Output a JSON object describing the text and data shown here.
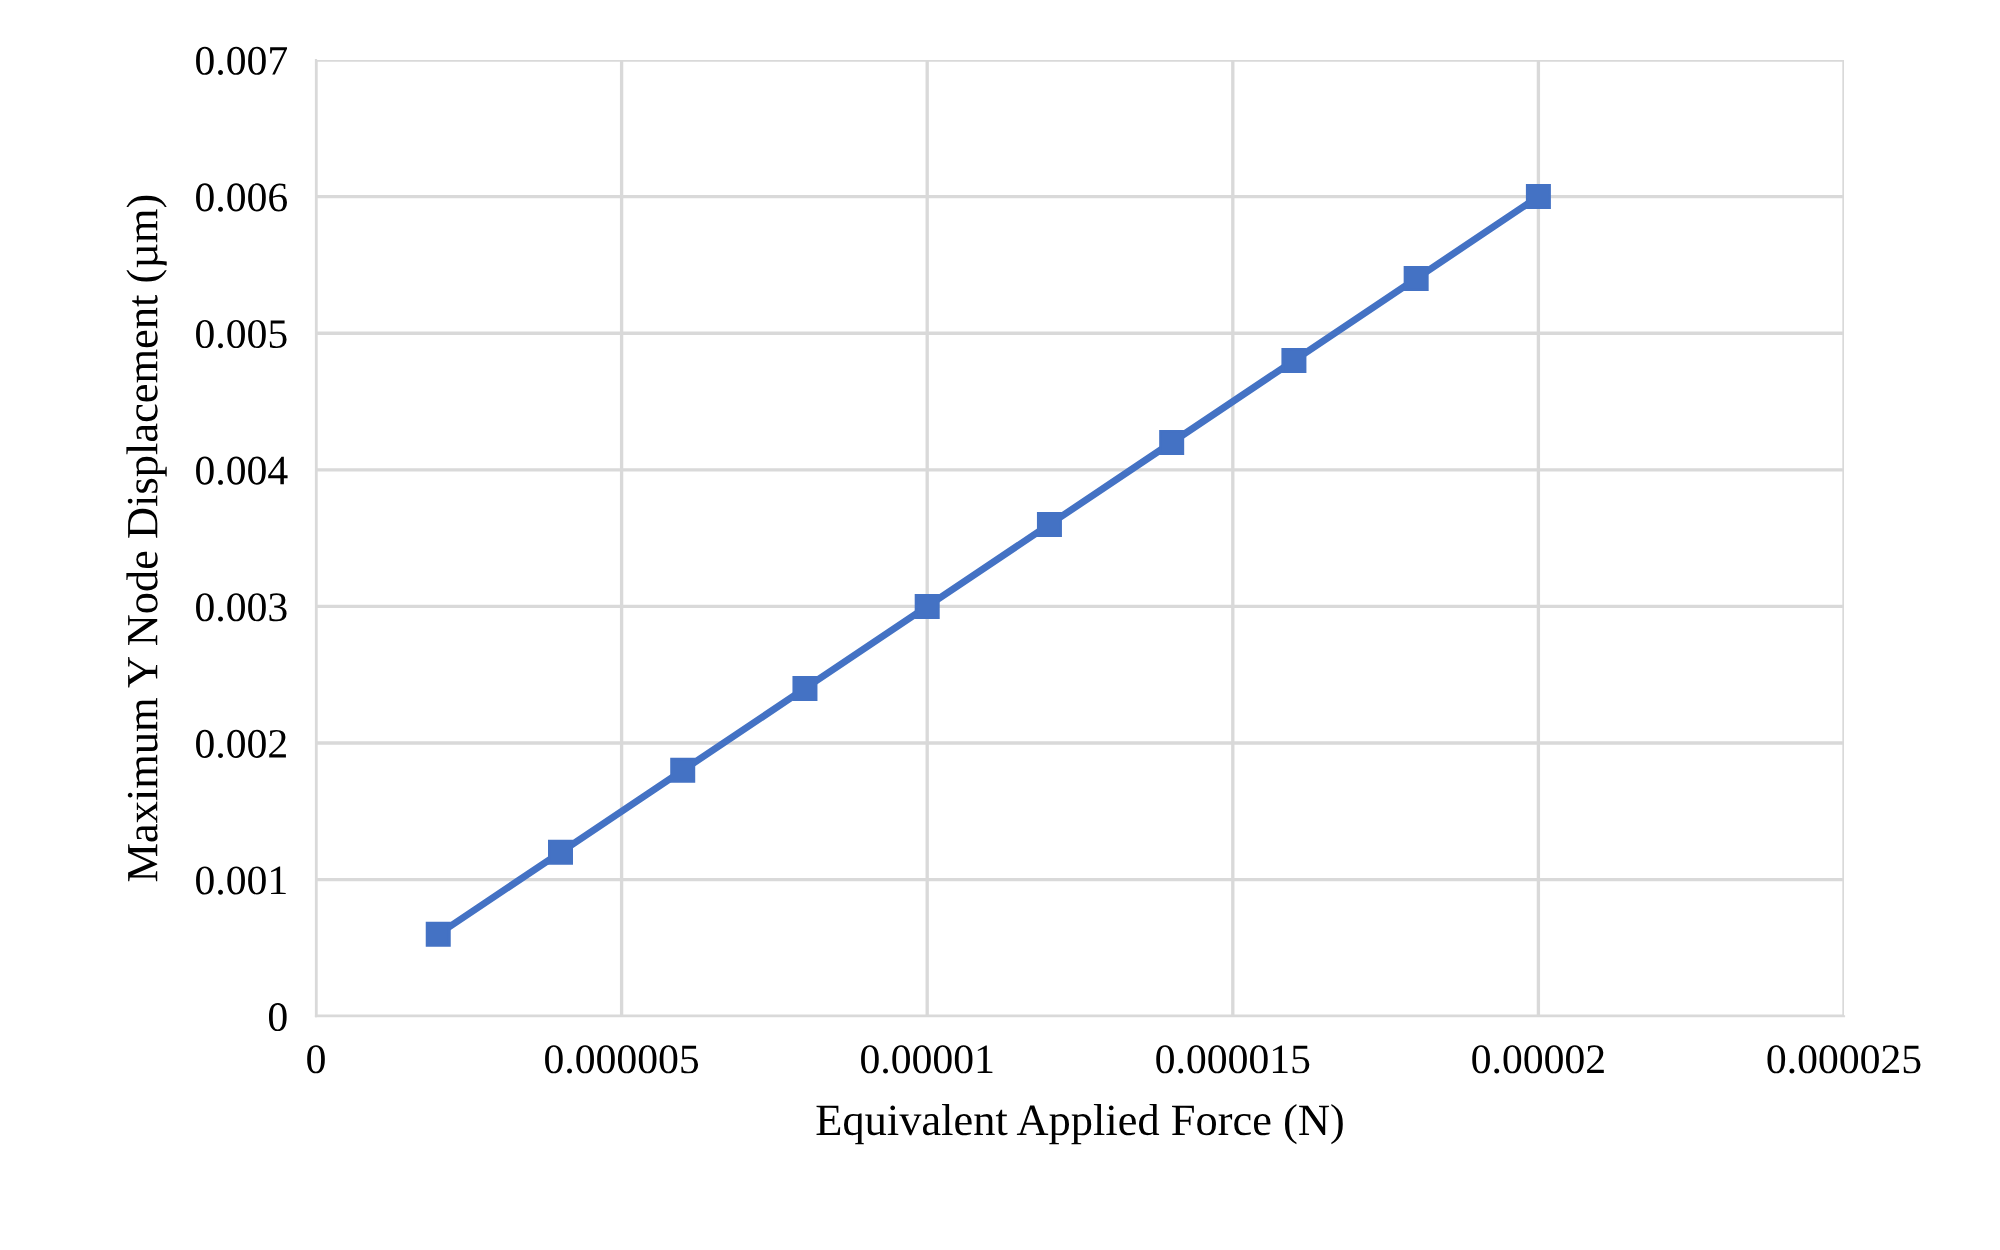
{
  "chart_data": {
    "type": "line",
    "xlabel": "Equivalent Applied Force (N)",
    "ylabel": "Maximum Y Node Displacement (µm)",
    "x": [
      2e-06,
      4e-06,
      6e-06,
      8e-06,
      1e-05,
      1.2e-05,
      1.4e-05,
      1.6e-05,
      1.8e-05,
      2e-05
    ],
    "series": [
      {
        "color": "#4472c4",
        "values": [
          0.0006,
          0.0012,
          0.0018,
          0.0024,
          0.003,
          0.0036,
          0.0042,
          0.0048,
          0.0054,
          0.006
        ]
      }
    ],
    "xlim": [
      0,
      2.5e-05
    ],
    "xticks": [
      0,
      {
        "value": 5e-06,
        "label": "0.000005"
      },
      {
        "value": 1e-05,
        "label": "0.00001"
      },
      {
        "value": 1.5e-05,
        "label": "0.000015"
      },
      {
        "value": 2e-05,
        "label": "0.00002"
      },
      {
        "value": 2.5e-05,
        "label": "0.000025"
      }
    ],
    "ylim": [
      0,
      0.007
    ],
    "yticks": [
      0,
      0.001,
      0.002,
      0.003,
      0.004,
      0.005,
      0.006,
      0.007
    ],
    "grid": true,
    "marker": "square",
    "line_style": "solid",
    "legend": false
  }
}
